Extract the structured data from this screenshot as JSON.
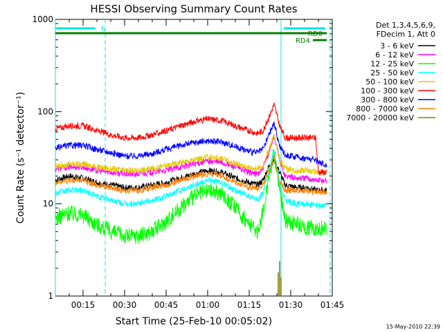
{
  "chart_data": {
    "type": "line",
    "title": "HESSI Observing Summary Count Rates",
    "xlabel": "Start Time (25-Feb-10 00:05:02)",
    "ylabel": "Count Rate (s⁻¹ detector⁻¹)",
    "x_unit": "minutes after 00:00 UT",
    "xlim": [
      5.0,
      105.0
    ],
    "ylim": [
      1,
      1000
    ],
    "yscale": "log",
    "x_ticks": [
      15,
      30,
      45,
      60,
      75,
      90,
      105
    ],
    "x_ticklabels": [
      "00:15",
      "00:30",
      "00:45",
      "01:00",
      "01:15",
      "01:30",
      "01:45"
    ],
    "y_ticks": [
      1,
      10,
      100,
      1000
    ],
    "y_ticklabels": [
      "1",
      "10",
      "100",
      "1000"
    ],
    "legend_header": [
      "Det 1,3,4,5,6,9,",
      "FDecim 1, Att 0"
    ],
    "legend_placement": "right-outside",
    "date_stamp": "15-May-2010 22:39",
    "flags": [
      {
        "label": "N",
        "color": "#00e5e5",
        "x_start": 5.0,
        "x_end": 19.5
      },
      {
        "label": "N",
        "color": "#00e5e5",
        "x_start": 87.5,
        "x_end": 102.5
      },
      {
        "label": "RD0",
        "color": "#008000",
        "x_start": 5.0,
        "x_end": 103.0
      },
      {
        "label": "RD4",
        "color": "#008000",
        "x_start": 98.0,
        "x_end": 103.0
      }
    ],
    "vertical_lines": [
      {
        "x": 5.0,
        "color": "#00e5e5",
        "style": "solid"
      },
      {
        "x": 86.5,
        "color": "#00e5e5",
        "style": "solid"
      },
      {
        "x": 23.0,
        "color": "#00e5e5",
        "style": "dashed"
      },
      {
        "x": 104.2,
        "color": "#00e5e5",
        "style": "dashed"
      }
    ],
    "series": [
      {
        "name": "3 - 6 keV",
        "color": "#000000",
        "x": [
          5,
          10,
          15,
          20,
          25,
          30,
          35,
          40,
          45,
          50,
          55,
          60,
          65,
          70,
          75,
          78,
          80,
          82,
          84,
          86,
          88,
          92,
          96,
          99,
          103
        ],
        "y": [
          18,
          20,
          19,
          17,
          16,
          15,
          15,
          16,
          17,
          19,
          21,
          23,
          22,
          19,
          17,
          16,
          18,
          25,
          30,
          22,
          16,
          15,
          15,
          14,
          14
        ]
      },
      {
        "name": "6 - 12 keV",
        "color": "#ff00ff",
        "x": [
          5,
          10,
          15,
          20,
          25,
          30,
          35,
          40,
          45,
          50,
          55,
          60,
          65,
          70,
          75,
          78,
          80,
          82,
          84,
          86,
          88,
          92,
          96,
          99,
          103
        ],
        "y": [
          24,
          25,
          25,
          23,
          22,
          21,
          21,
          22,
          23,
          25,
          27,
          29,
          28,
          25,
          22,
          21,
          24,
          35,
          55,
          30,
          20,
          19,
          19,
          18,
          18
        ]
      },
      {
        "name": "12 - 25 keV",
        "color": "#00ff00",
        "x": [
          5,
          10,
          15,
          20,
          25,
          30,
          35,
          40,
          45,
          50,
          55,
          60,
          65,
          70,
          75,
          78,
          80,
          82,
          84,
          86,
          88,
          92,
          96,
          99,
          103
        ],
        "y": [
          7,
          8,
          7.5,
          6,
          5,
          4.5,
          4.5,
          5,
          6.5,
          9,
          12,
          14,
          13,
          9,
          6,
          5,
          8,
          20,
          35,
          15,
          6.5,
          6,
          5.5,
          5.5,
          5.5
        ]
      },
      {
        "name": "25 - 50 keV",
        "color": "#00ffff",
        "x": [
          5,
          10,
          15,
          20,
          25,
          30,
          35,
          40,
          45,
          50,
          55,
          60,
          65,
          70,
          75,
          78,
          80,
          82,
          84,
          86,
          88,
          92,
          96,
          99,
          103
        ],
        "y": [
          13,
          14,
          14,
          12,
          11,
          10,
          10,
          11,
          12,
          14,
          16,
          18,
          17,
          14,
          12,
          11,
          13,
          22,
          37,
          16,
          11,
          10,
          10,
          9.5,
          9.5
        ]
      },
      {
        "name": "50 - 100 keV",
        "color": "#e6c800",
        "x": [
          5,
          10,
          15,
          20,
          25,
          30,
          35,
          40,
          45,
          50,
          55,
          60,
          65,
          70,
          75,
          78,
          80,
          82,
          84,
          86,
          88,
          92,
          96,
          99,
          103
        ],
        "y": [
          25,
          27,
          27,
          25,
          24,
          23,
          23,
          24,
          26,
          28,
          30,
          32,
          31,
          27,
          25,
          24,
          26,
          38,
          55,
          30,
          24,
          23,
          23,
          22,
          22
        ]
      },
      {
        "name": "100 - 300 keV",
        "color": "#ff0000",
        "x": [
          5,
          10,
          15,
          20,
          25,
          30,
          35,
          40,
          45,
          50,
          55,
          60,
          65,
          70,
          75,
          78,
          80,
          82,
          84,
          86,
          88,
          92,
          96,
          99,
          100,
          103
        ],
        "y": [
          65,
          70,
          70,
          62,
          56,
          52,
          52,
          56,
          62,
          70,
          78,
          83,
          80,
          70,
          62,
          58,
          62,
          85,
          120,
          70,
          52,
          52,
          52,
          52,
          22,
          22
        ]
      },
      {
        "name": "300 - 800 keV",
        "color": "#0000ff",
        "x": [
          5,
          10,
          15,
          20,
          25,
          30,
          35,
          40,
          45,
          50,
          55,
          60,
          65,
          70,
          75,
          78,
          80,
          82,
          84,
          86,
          88,
          92,
          96,
          99,
          103
        ],
        "y": [
          40,
          43,
          43,
          39,
          36,
          33,
          33,
          35,
          39,
          43,
          46,
          48,
          47,
          42,
          37,
          36,
          39,
          55,
          75,
          42,
          34,
          32,
          31,
          30,
          26
        ]
      },
      {
        "name": "800 - 7000 keV",
        "color": "#ff8000",
        "x": [
          5,
          10,
          15,
          20,
          25,
          30,
          35,
          40,
          45,
          50,
          55,
          60,
          65,
          70,
          75,
          78,
          80,
          82,
          84,
          86,
          88,
          92,
          96,
          99,
          103
        ],
        "y": [
          17,
          18,
          18,
          16,
          15,
          14,
          14,
          15,
          16,
          18,
          20,
          21,
          20,
          17,
          15,
          15,
          16,
          23,
          32,
          18,
          14,
          14,
          14,
          13.5,
          13.5
        ]
      },
      {
        "name": "7000 - 20000 keV",
        "color": "#808000",
        "x": [
          85.5,
          86.0,
          86.5
        ],
        "y": [
          1.8,
          2.4,
          1.6
        ]
      }
    ]
  }
}
